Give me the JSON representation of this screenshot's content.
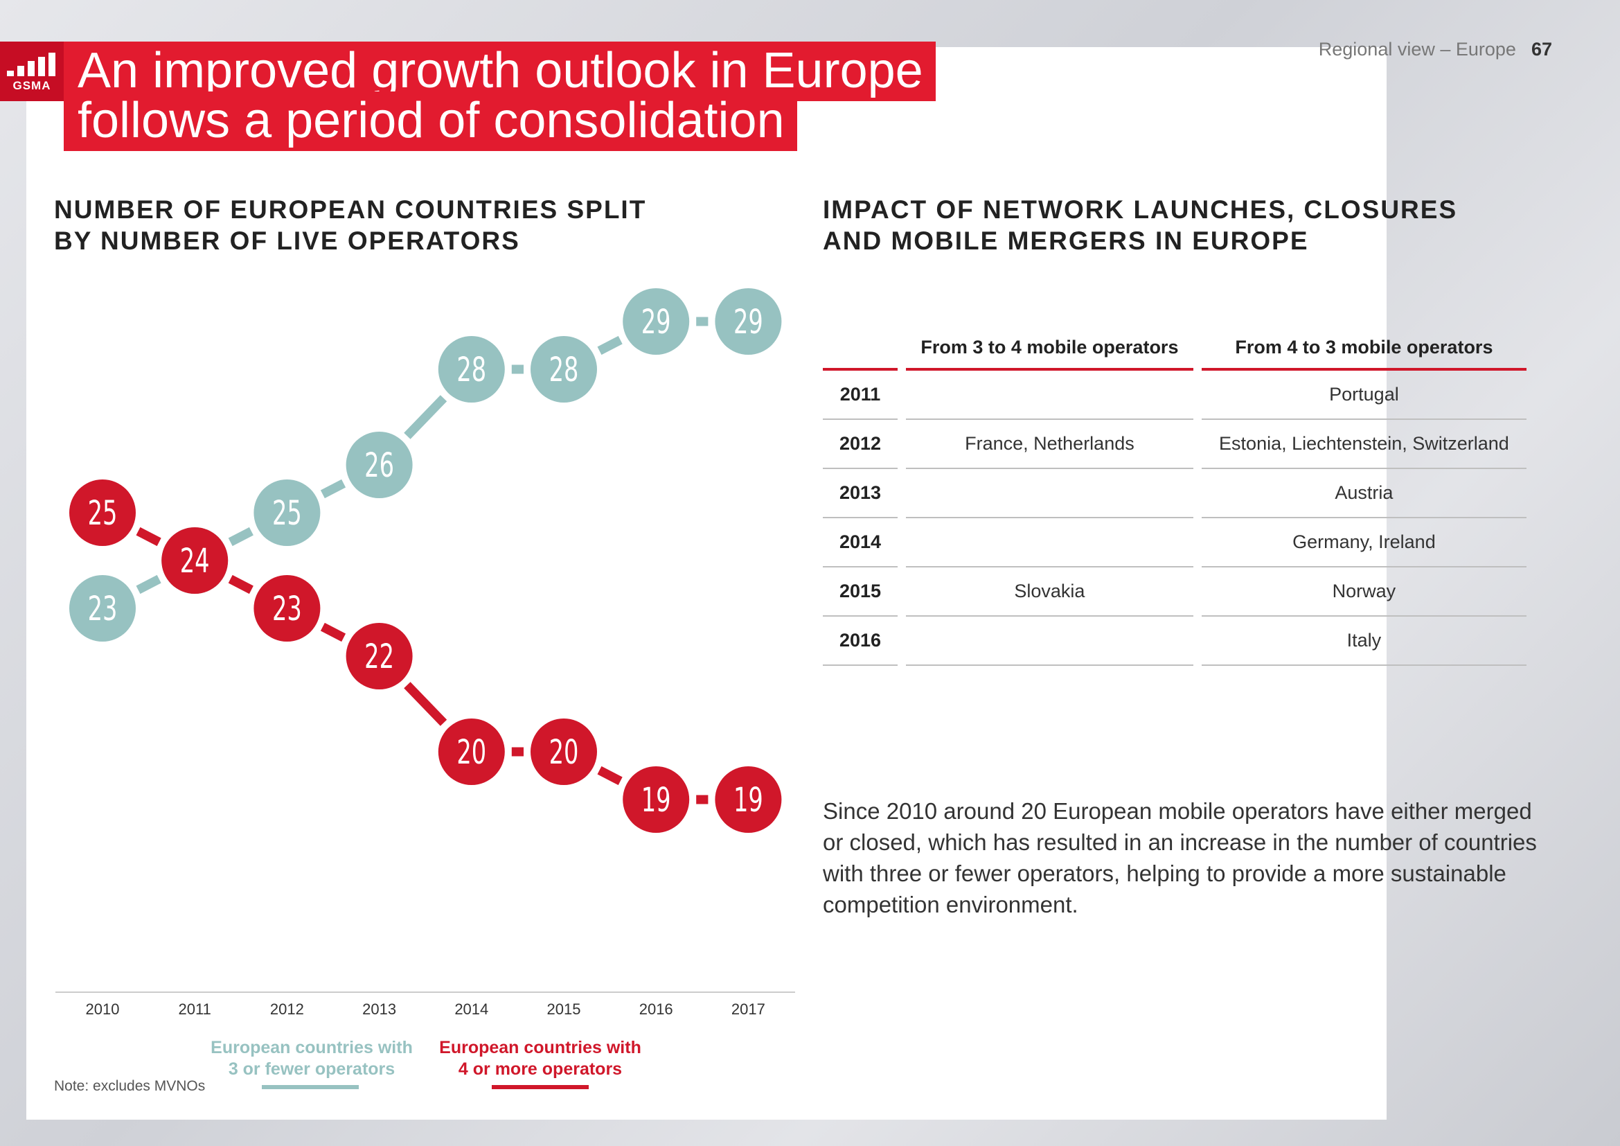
{
  "header": {
    "logo_text": "GSMA",
    "title_lines": [
      "An improved growth outlook in Europe",
      "follows a period of consolidation"
    ],
    "section_label": "Regional view – Europe",
    "page_number": "67"
  },
  "left_panel": {
    "title_lines": [
      "NUMBER OF EUROPEAN COUNTRIES SPLIT",
      "BY NUMBER OF LIVE OPERATORS"
    ],
    "note": "Note: excludes MVNOs"
  },
  "chart_data": {
    "type": "line",
    "title": "NUMBER OF EUROPEAN COUNTRIES SPLIT BY NUMBER OF LIVE OPERATORS",
    "x": [
      "2010",
      "2011",
      "2012",
      "2013",
      "2014",
      "2015",
      "2016",
      "2017"
    ],
    "series": [
      {
        "name": "European countries with 3 or fewer operators",
        "legend_lines": [
          "European countries with",
          "3 or fewer operators"
        ],
        "color": "#97c2c1",
        "values": [
          23,
          24,
          25,
          26,
          28,
          28,
          29,
          29
        ]
      },
      {
        "name": "European countries with 4 or more operators",
        "legend_lines": [
          "European countries with",
          "4 or more operators"
        ],
        "color": "#d0172a",
        "values": [
          25,
          24,
          23,
          22,
          20,
          20,
          19,
          19
        ]
      }
    ],
    "ylim": [
      19,
      29
    ],
    "legend_position": "bottom",
    "xlabel": "",
    "ylabel": ""
  },
  "right_panel": {
    "title_lines": [
      "IMPACT OF NETWORK LAUNCHES, CLOSURES",
      "AND MOBILE MERGERS IN EUROPE"
    ],
    "table": {
      "columns": [
        "",
        "From 3 to 4 mobile operators",
        "From 4 to 3 mobile operators"
      ],
      "rows": [
        [
          "2011",
          "",
          "Portugal"
        ],
        [
          "2012",
          "France, Netherlands",
          "Estonia, Liechtenstein, Switzerland"
        ],
        [
          "2013",
          "",
          "Austria"
        ],
        [
          "2014",
          "",
          "Germany, Ireland"
        ],
        [
          "2015",
          "Slovakia",
          "Norway"
        ],
        [
          "2016",
          "",
          "Italy"
        ]
      ]
    },
    "paragraph": "Since 2010 around 20 European mobile operators have either merged or closed, which has resulted in an increase in the number of countries with three or fewer operators, helping to provide a more sustainable competition environment."
  },
  "colors": {
    "brand_red": "#e21b2f",
    "chart_red": "#d0172a",
    "chart_teal": "#97c2c1"
  }
}
